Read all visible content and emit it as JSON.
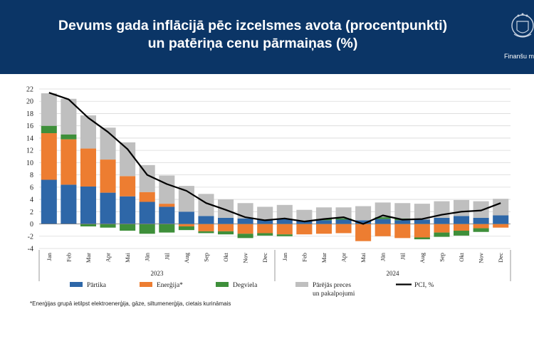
{
  "header": {
    "title_line1": "Devums gada inflācijā pēc izcelsmes avota (procentpunkti)",
    "title_line2": "un patēriņa cenu pārmaiņas (%)",
    "org_name": "Finanšu m",
    "background_color": "#0b3566"
  },
  "chart_data": {
    "type": "bar",
    "stacked": true,
    "title": "",
    "ylim": [
      -4,
      22
    ],
    "yticks": [
      -4,
      -2,
      0,
      2,
      4,
      6,
      8,
      10,
      12,
      14,
      16,
      18,
      20,
      22
    ],
    "grid": true,
    "categories": [
      "Jan",
      "Feb",
      "Mar",
      "Apr",
      "Mai",
      "Jūn",
      "Jūl",
      "Aug",
      "Sep",
      "Okt",
      "Nov",
      "Dec",
      "Jan",
      "Feb",
      "Mar",
      "Apr",
      "Mai",
      "Jūn",
      "Jūl",
      "Aug",
      "Sep",
      "Okt",
      "Nov",
      "Dec"
    ],
    "year_groups": [
      {
        "label": "2023",
        "start": 0,
        "end": 11
      },
      {
        "label": "2024",
        "start": 12,
        "end": 23
      }
    ],
    "series": [
      {
        "name": "Pārtika",
        "color": "#2e67a8",
        "values": [
          7.2,
          6.4,
          6.1,
          5.1,
          4.5,
          3.6,
          2.8,
          2.0,
          1.3,
          1.0,
          0.9,
          0.7,
          0.8,
          0.5,
          0.6,
          0.7,
          0.6,
          0.8,
          0.6,
          0.7,
          1.0,
          1.3,
          1.0,
          1.4
        ]
      },
      {
        "name": "Enerģija*",
        "color": "#ed7d31",
        "values": [
          7.6,
          7.4,
          6.2,
          5.4,
          3.3,
          1.6,
          0.5,
          -0.4,
          -1.2,
          -1.2,
          -1.6,
          -1.5,
          -1.7,
          -1.7,
          -1.6,
          -1.5,
          -2.8,
          -2.0,
          -2.3,
          -2.2,
          -1.4,
          -1.1,
          -0.7,
          -0.6
        ]
      },
      {
        "name": "Degviela",
        "color": "#3e8f3a",
        "values": [
          1.2,
          0.8,
          -0.4,
          -0.6,
          -1.1,
          -1.6,
          -1.4,
          -0.6,
          -0.3,
          -0.5,
          -0.7,
          -0.4,
          -0.3,
          0.0,
          0.2,
          0.2,
          0.0,
          0.3,
          0.3,
          -0.3,
          -0.7,
          -0.8,
          -0.6,
          0.0
        ]
      },
      {
        "name": "Pārējās preces un pakalpojumi",
        "legend_lines": [
          "Pārējās preces",
          "un pakalpojumi"
        ],
        "color": "#bfbfbf",
        "values": [
          5.3,
          5.8,
          5.4,
          5.2,
          5.5,
          4.4,
          4.6,
          4.2,
          3.6,
          3.0,
          2.5,
          2.1,
          2.3,
          1.8,
          1.9,
          1.8,
          2.3,
          2.4,
          2.5,
          2.6,
          2.7,
          2.6,
          2.7,
          2.7
        ]
      }
    ],
    "line": {
      "name": "PCI, %",
      "color": "#000000",
      "values": [
        21.4,
        20.3,
        17.3,
        15.0,
        12.2,
        8.0,
        6.5,
        5.4,
        3.4,
        2.3,
        1.1,
        0.6,
        0.9,
        0.4,
        0.8,
        1.1,
        0.0,
        1.4,
        0.7,
        0.8,
        1.5,
        2.0,
        2.2,
        3.4
      ]
    },
    "legend_position": "bottom",
    "footnote": "*Enerģijas grupā ietilpst elektroenerģija, gāze, siltumenerģija, cietais kurināmais"
  }
}
